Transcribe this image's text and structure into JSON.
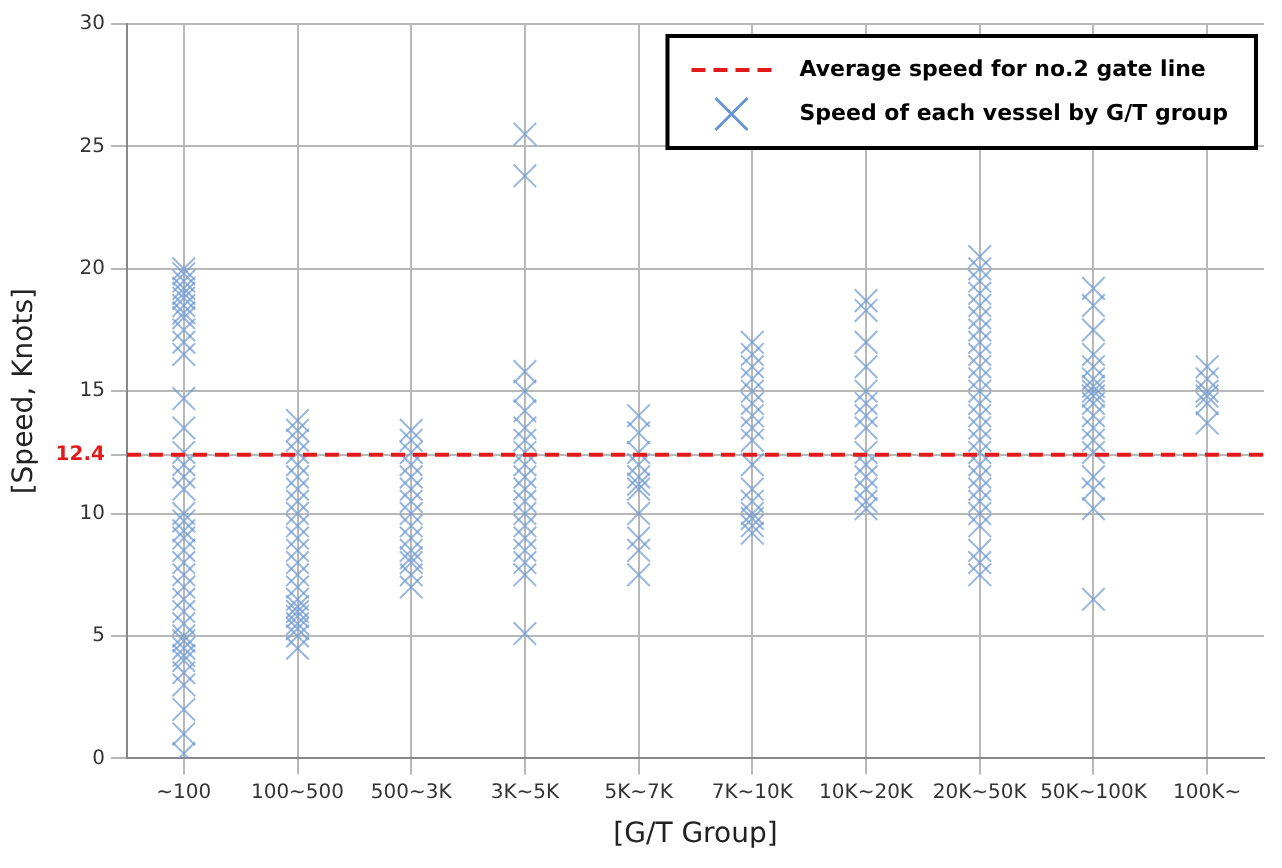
{
  "chart_data": {
    "type": "scatter",
    "xlabel": "[G/T Group]",
    "ylabel": "[Speed, Knots]",
    "categories": [
      "~100",
      "100~500",
      "500~3K",
      "3K~5K",
      "5K~7K",
      "7K~10K",
      "10K~20K",
      "20K~50K",
      "50K~100K",
      "100K~"
    ],
    "series": [
      {
        "name": "Speed of each vessel by G/T group",
        "color": "#6a96d0",
        "x": [
          "~100",
          "~100",
          "~100",
          "~100",
          "~100",
          "~100",
          "~100",
          "~100",
          "~100",
          "~100",
          "~100",
          "~100",
          "~100",
          "~100",
          "~100",
          "~100",
          "~100",
          "~100",
          "~100",
          "~100",
          "~100",
          "~100",
          "~100",
          "~100",
          "~100",
          "~100",
          "~100",
          "~100",
          "~100",
          "~100",
          "~100",
          "~100",
          "~100",
          "~100",
          "~100",
          "~100",
          "~100",
          "~100",
          "~100",
          "100~500",
          "100~500",
          "100~500",
          "100~500",
          "100~500",
          "100~500",
          "100~500",
          "100~500",
          "100~500",
          "100~500",
          "100~500",
          "100~500",
          "100~500",
          "100~500",
          "100~500",
          "100~500",
          "100~500",
          "100~500",
          "100~500",
          "100~500",
          "100~500",
          "100~500",
          "100~500",
          "500~3K",
          "500~3K",
          "500~3K",
          "500~3K",
          "500~3K",
          "500~3K",
          "500~3K",
          "500~3K",
          "500~3K",
          "500~3K",
          "500~3K",
          "500~3K",
          "500~3K",
          "500~3K",
          "500~3K",
          "3K~5K",
          "3K~5K",
          "3K~5K",
          "3K~5K",
          "3K~5K",
          "3K~5K",
          "3K~5K",
          "3K~5K",
          "3K~5K",
          "3K~5K",
          "3K~5K",
          "3K~5K",
          "3K~5K",
          "3K~5K",
          "3K~5K",
          "3K~5K",
          "3K~5K",
          "3K~5K",
          "3K~5K",
          "5K~7K",
          "5K~7K",
          "5K~7K",
          "5K~7K",
          "5K~7K",
          "5K~7K",
          "5K~7K",
          "5K~7K",
          "5K~7K",
          "5K~7K",
          "5K~7K",
          "7K~10K",
          "7K~10K",
          "7K~10K",
          "7K~10K",
          "7K~10K",
          "7K~10K",
          "7K~10K",
          "7K~10K",
          "7K~10K",
          "7K~10K",
          "7K~10K",
          "7K~10K",
          "7K~10K",
          "7K~10K",
          "7K~10K",
          "7K~10K",
          "10K~20K",
          "10K~20K",
          "10K~20K",
          "10K~20K",
          "10K~20K",
          "10K~20K",
          "10K~20K",
          "10K~20K",
          "10K~20K",
          "10K~20K",
          "10K~20K",
          "10K~20K",
          "10K~20K",
          "10K~20K",
          "20K~50K",
          "20K~50K",
          "20K~50K",
          "20K~50K",
          "20K~50K",
          "20K~50K",
          "20K~50K",
          "20K~50K",
          "20K~50K",
          "20K~50K",
          "20K~50K",
          "20K~50K",
          "20K~50K",
          "20K~50K",
          "20K~50K",
          "20K~50K",
          "20K~50K",
          "20K~50K",
          "20K~50K",
          "20K~50K",
          "20K~50K",
          "20K~50K",
          "20K~50K",
          "20K~50K",
          "20K~50K",
          "20K~50K",
          "50K~100K",
          "50K~100K",
          "50K~100K",
          "50K~100K",
          "50K~100K",
          "50K~100K",
          "50K~100K",
          "50K~100K",
          "50K~100K",
          "50K~100K",
          "50K~100K",
          "50K~100K",
          "50K~100K",
          "50K~100K",
          "50K~100K",
          "50K~100K",
          "50K~100K",
          "50K~100K",
          "100K~",
          "100K~",
          "100K~",
          "100K~",
          "100K~",
          "100K~"
        ],
        "values": [
          20,
          19.8,
          19.5,
          19.2,
          19,
          18.8,
          18.5,
          18.2,
          18,
          17.5,
          17,
          16.5,
          14.7,
          13.5,
          12.5,
          12,
          11.5,
          11,
          10,
          9.7,
          9.3,
          9,
          8.5,
          8,
          7.5,
          7,
          6.5,
          6,
          5.5,
          5,
          4.8,
          4.5,
          4.2,
          4,
          3.5,
          3,
          2,
          1,
          0.2,
          13.8,
          13.4,
          13,
          12.5,
          12,
          11.5,
          11,
          10.5,
          10,
          9.5,
          9,
          8.5,
          8,
          7.5,
          7,
          6.5,
          6.2,
          6,
          5.8,
          5.5,
          5.3,
          5,
          4.5,
          13.4,
          13,
          12.5,
          12,
          11.5,
          11,
          10.5,
          10,
          9.5,
          9,
          8.5,
          8.2,
          8,
          7.5,
          7,
          25.5,
          23.8,
          15.8,
          15,
          14.2,
          13.5,
          13,
          12.5,
          12,
          11.5,
          11,
          10.5,
          10,
          9.5,
          9,
          8.5,
          8,
          7.5,
          5.1,
          14,
          13.3,
          12.5,
          12,
          11.5,
          11.2,
          11,
          10,
          9,
          8.5,
          7.5,
          17,
          16.5,
          16,
          15.5,
          15,
          14.5,
          14,
          13.5,
          13,
          12,
          11,
          10.5,
          10,
          9.8,
          9.5,
          9.2,
          18.7,
          18.3,
          17,
          16,
          15,
          14.5,
          14,
          13.5,
          12.5,
          12,
          11.5,
          11,
          10.5,
          10.2,
          20.5,
          20,
          19.5,
          19,
          18.5,
          18,
          17.5,
          17,
          16.5,
          16,
          15.5,
          15,
          14.5,
          14,
          13.5,
          13,
          12.5,
          12,
          11.5,
          11,
          10.5,
          10,
          9.5,
          8.5,
          8,
          7.5,
          19.2,
          18.5,
          17.5,
          16.5,
          16,
          15.5,
          15.2,
          15,
          14.8,
          14.5,
          14,
          13.5,
          13,
          12.5,
          11.5,
          11,
          10.2,
          6.5,
          16,
          15.5,
          15,
          14.8,
          14.5,
          13.7
        ]
      }
    ],
    "ylim": [
      0,
      30
    ],
    "yticks": [
      0,
      5,
      10,
      {
        "value": 12.4,
        "label": "12.4"
      },
      15,
      20,
      25,
      30
    ],
    "ref_lines": [
      {
        "axis": "y",
        "value": 12.4,
        "label": "Average speed for no.2 gate line",
        "color": "#e31a1c",
        "line_style": "dashed"
      }
    ],
    "grid": true,
    "legend": "top right",
    "marker": "cross"
  }
}
